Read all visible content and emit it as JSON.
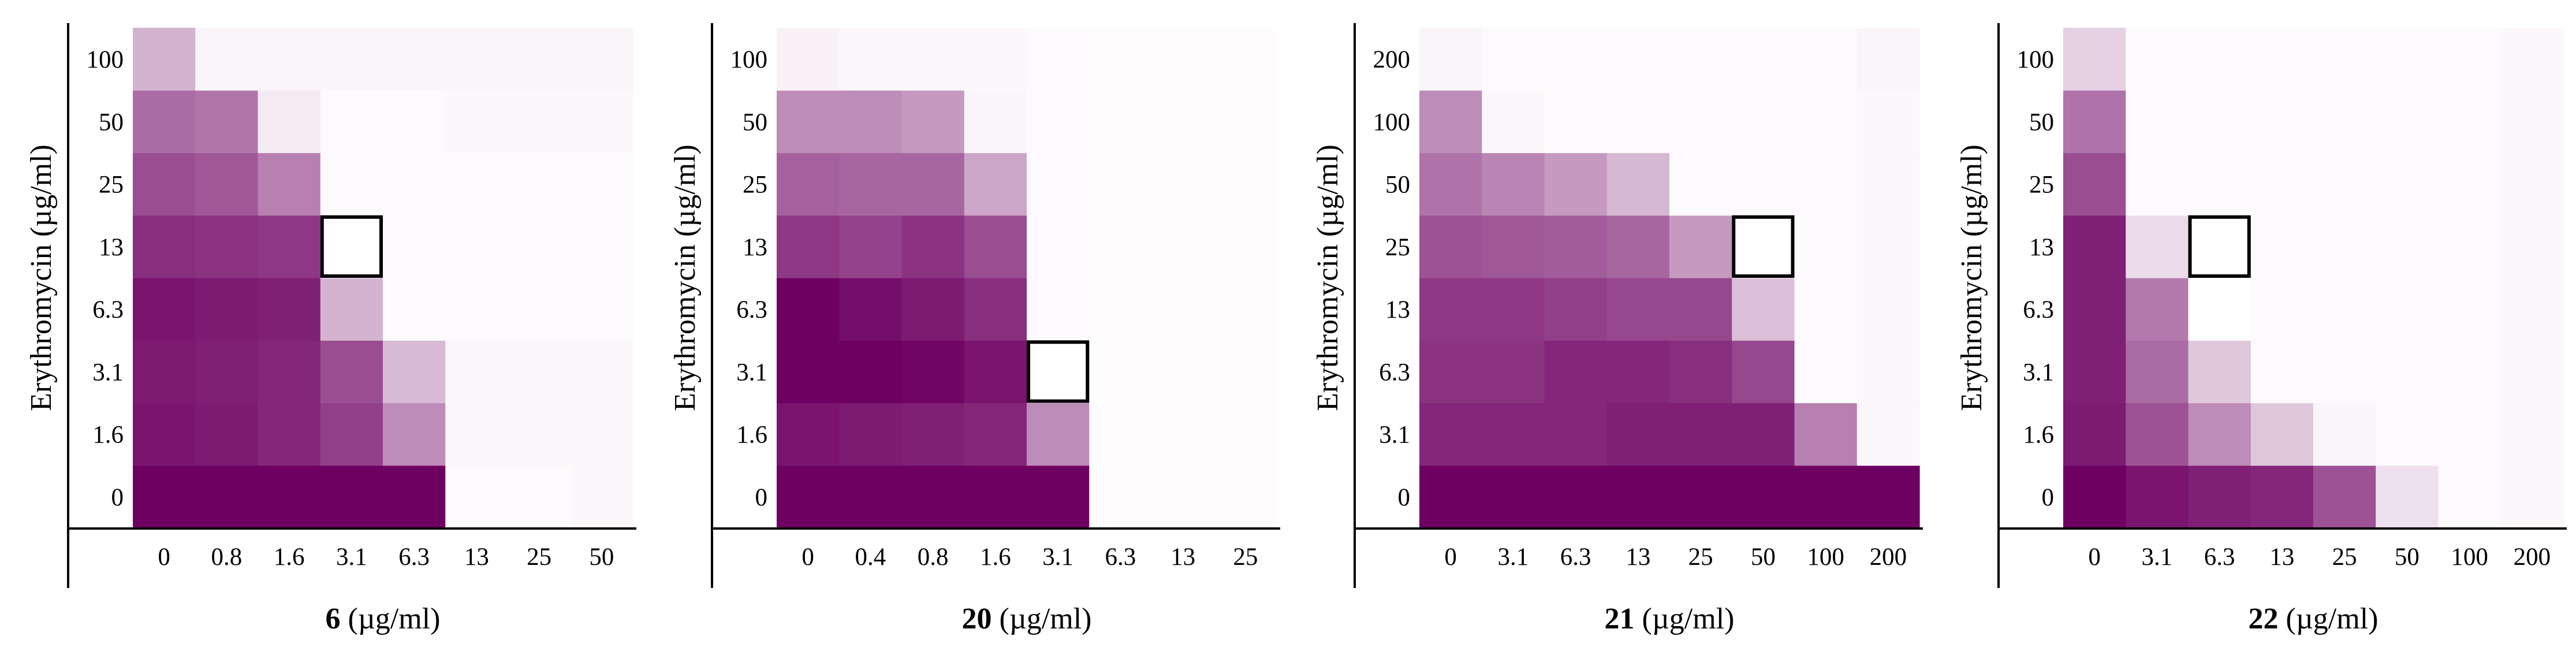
{
  "figure": {
    "description_free": true,
    "color_low": "#ffffff",
    "color_high": "#6e0062",
    "highlight_color": "#000000"
  },
  "chart_data": [
    {
      "type": "heatmap",
      "id": "6",
      "xlabel_compound": "6",
      "xlabel_unit": " (µg/ml)",
      "ylabel": "Erythromycin (µg/ml)",
      "x_ticks": [
        "0",
        "0.8",
        "1.6",
        "3.1",
        "6.3",
        "13",
        "25",
        "50"
      ],
      "y_ticks": [
        "0",
        "1.6",
        "3.1",
        "6.3",
        "13",
        "25",
        "50",
        "100"
      ],
      "highlight": {
        "col": 3,
        "row": 4
      },
      "intensity_rows_bottom_to_top": [
        [
          1.0,
          1.0,
          1.0,
          1.0,
          1.0,
          0.02,
          0.02,
          0.03
        ],
        [
          0.92,
          0.9,
          0.85,
          0.75,
          0.45,
          0.03,
          0.03,
          0.03
        ],
        [
          0.9,
          0.88,
          0.85,
          0.7,
          0.27,
          0.03,
          0.03,
          0.03
        ],
        [
          0.92,
          0.9,
          0.88,
          0.3,
          0.02,
          0.02,
          0.02,
          0.02
        ],
        [
          0.82,
          0.8,
          0.78,
          0.0,
          0.02,
          0.02,
          0.02,
          0.02
        ],
        [
          0.7,
          0.66,
          0.5,
          0.02,
          0.02,
          0.02,
          0.02,
          0.02
        ],
        [
          0.58,
          0.54,
          0.08,
          0.02,
          0.02,
          0.03,
          0.03,
          0.03
        ],
        [
          0.3,
          0.04,
          0.04,
          0.04,
          0.04,
          0.04,
          0.04,
          0.04
        ]
      ]
    },
    {
      "type": "heatmap",
      "id": "20",
      "xlabel_compound": "20",
      "xlabel_unit": " (µg/ml)",
      "ylabel": "Erythromycin (µg/ml)",
      "x_ticks": [
        "0",
        "0.4",
        "0.8",
        "1.6",
        "3.1",
        "6.3",
        "13",
        "25"
      ],
      "y_ticks": [
        "0",
        "1.6",
        "3.1",
        "6.3",
        "13",
        "25",
        "50",
        "100"
      ],
      "highlight": {
        "col": 4,
        "row": 2
      },
      "intensity_rows_bottom_to_top": [
        [
          1.0,
          1.0,
          1.0,
          1.0,
          1.0,
          0.01,
          0.01,
          0.01
        ],
        [
          0.92,
          0.9,
          0.88,
          0.85,
          0.45,
          0.01,
          0.01,
          0.01
        ],
        [
          1.0,
          1.0,
          0.98,
          0.92,
          0.0,
          0.01,
          0.01,
          0.01
        ],
        [
          1.0,
          0.95,
          0.9,
          0.82,
          0.02,
          0.01,
          0.01,
          0.01
        ],
        [
          0.78,
          0.74,
          0.8,
          0.7,
          0.02,
          0.01,
          0.01,
          0.01
        ],
        [
          0.62,
          0.6,
          0.6,
          0.35,
          0.02,
          0.01,
          0.01,
          0.01
        ],
        [
          0.45,
          0.45,
          0.4,
          0.04,
          0.02,
          0.01,
          0.01,
          0.01
        ],
        [
          0.05,
          0.03,
          0.03,
          0.03,
          0.02,
          0.01,
          0.01,
          0.01
        ]
      ]
    },
    {
      "type": "heatmap",
      "id": "21",
      "xlabel_compound": "21",
      "xlabel_unit": " (µg/ml)",
      "ylabel": "Erythromycin (µg/ml)",
      "x_ticks": [
        "0",
        "3.1",
        "6.3",
        "13",
        "25",
        "50",
        "100",
        "200"
      ],
      "y_ticks": [
        "0",
        "3.1",
        "6.3",
        "13",
        "25",
        "50",
        "100",
        "200"
      ],
      "highlight": {
        "col": 5,
        "row": 4
      },
      "intensity_rows_bottom_to_top": [
        [
          1.0,
          1.0,
          1.0,
          1.0,
          1.0,
          1.0,
          1.0,
          1.0
        ],
        [
          0.85,
          0.85,
          0.85,
          0.88,
          0.88,
          0.88,
          0.5,
          0.03
        ],
        [
          0.8,
          0.8,
          0.85,
          0.85,
          0.82,
          0.72,
          0.02,
          0.03
        ],
        [
          0.78,
          0.78,
          0.75,
          0.72,
          0.72,
          0.25,
          0.02,
          0.03
        ],
        [
          0.68,
          0.66,
          0.64,
          0.6,
          0.4,
          0.0,
          0.02,
          0.03
        ],
        [
          0.55,
          0.48,
          0.4,
          0.28,
          0.02,
          0.02,
          0.02,
          0.03
        ],
        [
          0.45,
          0.03,
          0.02,
          0.02,
          0.02,
          0.02,
          0.02,
          0.03
        ],
        [
          0.04,
          0.02,
          0.02,
          0.02,
          0.02,
          0.02,
          0.02,
          0.04
        ]
      ]
    },
    {
      "type": "heatmap",
      "id": "22",
      "xlabel_compound": "22",
      "xlabel_unit": " (µg/ml)",
      "ylabel": "Erythromycin (µg/ml)",
      "x_ticks": [
        "0",
        "3.1",
        "6.3",
        "13",
        "25",
        "50",
        "100",
        "200"
      ],
      "y_ticks": [
        "0",
        "1.6",
        "3.1",
        "6.3",
        "13",
        "25",
        "50",
        "100"
      ],
      "highlight": {
        "col": 2,
        "row": 4
      },
      "intensity_rows_bottom_to_top": [
        [
          1.0,
          0.92,
          0.88,
          0.85,
          0.68,
          0.12,
          0.02,
          0.03
        ],
        [
          0.9,
          0.68,
          0.45,
          0.22,
          0.04,
          0.02,
          0.02,
          0.03
        ],
        [
          0.88,
          0.58,
          0.22,
          0.02,
          0.02,
          0.02,
          0.02,
          0.03
        ],
        [
          0.88,
          0.52,
          0.0,
          0.02,
          0.02,
          0.02,
          0.02,
          0.03
        ],
        [
          0.88,
          0.14,
          0.02,
          0.02,
          0.02,
          0.02,
          0.02,
          0.03
        ],
        [
          0.7,
          0.02,
          0.02,
          0.02,
          0.02,
          0.02,
          0.02,
          0.03
        ],
        [
          0.55,
          0.02,
          0.02,
          0.02,
          0.02,
          0.02,
          0.02,
          0.03
        ],
        [
          0.18,
          0.02,
          0.02,
          0.02,
          0.02,
          0.02,
          0.02,
          0.03
        ]
      ]
    }
  ]
}
